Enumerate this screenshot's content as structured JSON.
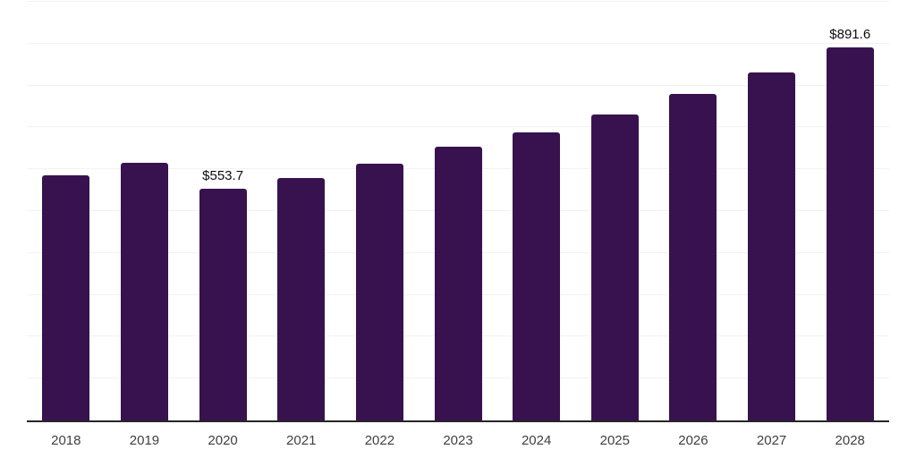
{
  "chart_data": {
    "type": "bar",
    "title": "",
    "xlabel": "",
    "ylabel": "",
    "categories": [
      "2018",
      "2019",
      "2020",
      "2021",
      "2022",
      "2023",
      "2024",
      "2025",
      "2026",
      "2027",
      "2028"
    ],
    "values": [
      586,
      615,
      553.7,
      580,
      614,
      653,
      689,
      731,
      781,
      831,
      891.6
    ],
    "value_labels": {
      "2020": "$553.7",
      "2028": "$891.6"
    },
    "ylim": [
      0,
      1000
    ],
    "gridline_step": 100,
    "grid": "horizontal",
    "y_tick_labels_visible": false,
    "legend": "none",
    "colors": {
      "bar": "#38124E",
      "gridline": "#f2f2f2",
      "axis_line": "#262626",
      "x_tick_label": "#404040",
      "value_label": "#0d0d0d",
      "background": "#ffffff"
    }
  }
}
